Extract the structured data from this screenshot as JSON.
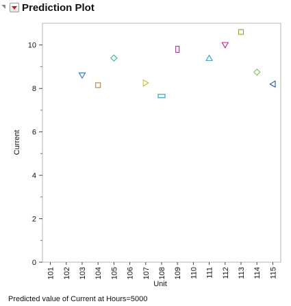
{
  "header": {
    "title": "Prediction Plot"
  },
  "footnote": "Predicted value of Current at Hours=5000",
  "chart_data": {
    "type": "scatter",
    "xlabel": "Unit",
    "ylabel": "Current",
    "categories": [
      "101",
      "102",
      "103",
      "104",
      "105",
      "106",
      "107",
      "108",
      "109",
      "110",
      "111",
      "112",
      "113",
      "114",
      "115"
    ],
    "ylim": [
      0,
      11
    ],
    "y_ticks": [
      0,
      2,
      4,
      6,
      8,
      10
    ],
    "grid": false,
    "points": [
      {
        "unit": "103",
        "value": 8.6,
        "marker": "triangle-down",
        "color": "#3a6fb5"
      },
      {
        "unit": "104",
        "value": 8.15,
        "marker": "square",
        "color": "#c8782a"
      },
      {
        "unit": "105",
        "value": 9.4,
        "marker": "diamond",
        "color": "#2fb49a"
      },
      {
        "unit": "107",
        "value": 8.25,
        "marker": "triangle-right",
        "color": "#c8c21a"
      },
      {
        "unit": "108",
        "value": 7.65,
        "marker": "rect-wide",
        "color": "#1f9ab3"
      },
      {
        "unit": "109",
        "value": 9.8,
        "marker": "rect-tall",
        "color": "#b02a9a"
      },
      {
        "unit": "111",
        "value": 9.4,
        "marker": "triangle-up",
        "color": "#2a9ad0"
      },
      {
        "unit": "112",
        "value": 10.0,
        "marker": "triangle-down",
        "color": "#c0208a"
      },
      {
        "unit": "113",
        "value": 10.6,
        "marker": "square",
        "color": "#9aa01a"
      },
      {
        "unit": "114",
        "value": 8.75,
        "marker": "diamond",
        "color": "#7ac24a"
      },
      {
        "unit": "115",
        "value": 8.2,
        "marker": "triangle-left",
        "color": "#2a4f9a"
      }
    ]
  }
}
